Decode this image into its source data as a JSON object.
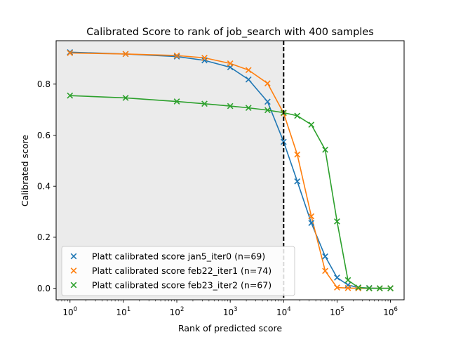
{
  "chart_data": {
    "type": "line",
    "title": "Calibrated Score to rank of job_search with 400 samples",
    "xlabel": "Rank of predicted score",
    "ylabel": "Calibrated score",
    "x_scale": "log",
    "xlim": [
      0.55,
      1800000
    ],
    "ylim": [
      -0.045,
      0.97
    ],
    "x_ticks": [
      1,
      10,
      100,
      1000,
      10000,
      100000,
      1000000
    ],
    "x_tick_labels": [
      {
        "base": "10",
        "exp": "0"
      },
      {
        "base": "10",
        "exp": "1"
      },
      {
        "base": "10",
        "exp": "2"
      },
      {
        "base": "10",
        "exp": "3"
      },
      {
        "base": "10",
        "exp": "4"
      },
      {
        "base": "10",
        "exp": "5"
      },
      {
        "base": "10",
        "exp": "6"
      }
    ],
    "y_ticks": [
      0.0,
      0.2,
      0.4,
      0.6,
      0.8
    ],
    "y_tick_labels": [
      "0.0",
      "0.2",
      "0.4",
      "0.6",
      "0.8"
    ],
    "grid": false,
    "shaded_region_x": [
      0.55,
      10000
    ],
    "shaded_color": "#ebebeb",
    "vline_x": 10000,
    "legend_position": "lower-left",
    "x": [
      1,
      11,
      100,
      330,
      1000,
      2200,
      5000,
      10000,
      18000,
      33000,
      60000,
      100000,
      160000,
      250000,
      400000,
      630000,
      1000000
    ],
    "series": [
      {
        "name": "Platt calibrated score jan5_iter0 (n=69)",
        "color": "#1f77b4",
        "values": [
          0.925,
          0.918,
          0.908,
          0.893,
          0.866,
          0.818,
          0.731,
          0.574,
          0.419,
          0.256,
          0.125,
          0.042,
          0.013,
          0.003,
          0.001,
          0.0,
          0.0
        ]
      },
      {
        "name": "Platt calibrated score feb22_iter1 (n=74)",
        "color": "#ff7f0e",
        "values": [
          0.922,
          0.918,
          0.912,
          0.903,
          0.881,
          0.855,
          0.803,
          0.686,
          0.524,
          0.282,
          0.068,
          0.003,
          0.001,
          0.0,
          0.0,
          0.0,
          0.0
        ]
      },
      {
        "name": "Platt calibrated score feb23_iter2 (n=67)",
        "color": "#2ca02c",
        "values": [
          0.755,
          0.746,
          0.732,
          0.723,
          0.714,
          0.707,
          0.698,
          0.688,
          0.676,
          0.641,
          0.543,
          0.262,
          0.032,
          0.003,
          0.0,
          0.0,
          0.0
        ]
      }
    ]
  }
}
